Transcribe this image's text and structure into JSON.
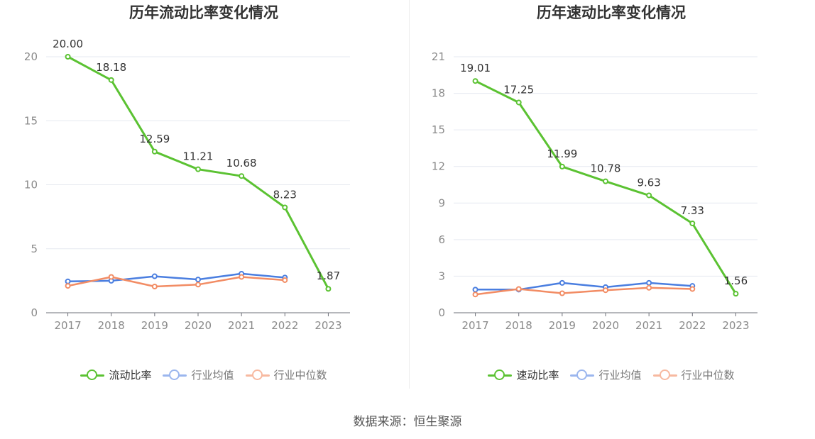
{
  "source": "数据来源：恒生聚源",
  "colors": {
    "main": "#5bc232",
    "avg": "#4a7ee0",
    "median": "#f28c64"
  },
  "chart_data": [
    {
      "type": "line",
      "title": "历年流动比率变化情况",
      "categories": [
        "2017",
        "2018",
        "2019",
        "2020",
        "2021",
        "2022",
        "2023"
      ],
      "y_ticks": [
        "0",
        "5",
        "10",
        "15",
        "20"
      ],
      "ylim": [
        0,
        20
      ],
      "grid": true,
      "legend_position": "bottom",
      "series": [
        {
          "name": "流动比率",
          "role": "main",
          "values": [
            20.0,
            18.18,
            12.59,
            11.21,
            10.68,
            8.23,
            1.87
          ],
          "labels": [
            "20.00",
            "18.18",
            "12.59",
            "11.21",
            "10.68",
            "8.23",
            "1.87"
          ]
        },
        {
          "name": "行业均值",
          "role": "avg",
          "values": [
            2.45,
            2.5,
            2.85,
            2.6,
            3.05,
            2.75,
            null
          ]
        },
        {
          "name": "行业中位数",
          "role": "median",
          "values": [
            2.1,
            2.8,
            2.05,
            2.2,
            2.8,
            2.55,
            null
          ]
        }
      ]
    },
    {
      "type": "line",
      "title": "历年速动比率变化情况",
      "categories": [
        "2017",
        "2018",
        "2019",
        "2020",
        "2021",
        "2022",
        "2023"
      ],
      "y_ticks": [
        "0",
        "3",
        "6",
        "9",
        "12",
        "15",
        "18",
        "21"
      ],
      "ylim": [
        0,
        21
      ],
      "grid": true,
      "legend_position": "bottom",
      "series": [
        {
          "name": "速动比率",
          "role": "main",
          "values": [
            19.01,
            17.25,
            11.99,
            10.78,
            9.63,
            7.33,
            1.56
          ],
          "labels": [
            "19.01",
            "17.25",
            "11.99",
            "10.78",
            "9.63",
            "7.33",
            "1.56"
          ]
        },
        {
          "name": "行业均值",
          "role": "avg",
          "values": [
            1.9,
            1.9,
            2.45,
            2.1,
            2.45,
            2.2,
            null
          ]
        },
        {
          "name": "行业中位数",
          "role": "median",
          "values": [
            1.5,
            1.95,
            1.6,
            1.85,
            2.05,
            1.95,
            null
          ]
        }
      ]
    }
  ]
}
